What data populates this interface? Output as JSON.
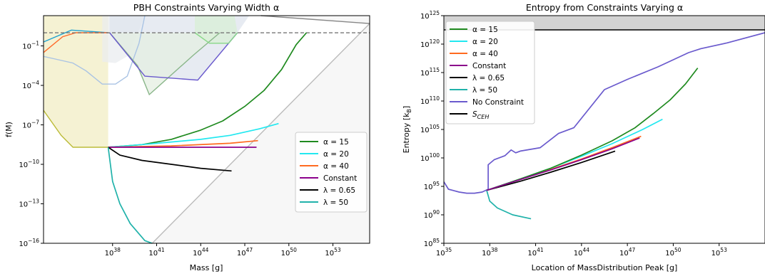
{
  "chart_data": [
    {
      "type": "line",
      "title": "PBH Constraints Varying Width α",
      "xlabel": "Mass [g]",
      "ylabel": "f(M)",
      "xscale": "log",
      "yscale": "log",
      "xlim_log10": [
        33.3,
        55.5
      ],
      "ylim_log10": [
        -16,
        1.3
      ],
      "x_ticks": [
        {
          "v": 38,
          "base": "10",
          "exp": "38"
        },
        {
          "v": 41,
          "base": "10",
          "exp": "41"
        },
        {
          "v": 44,
          "base": "10",
          "exp": "44"
        },
        {
          "v": 47,
          "base": "10",
          "exp": "47"
        },
        {
          "v": 50,
          "base": "10",
          "exp": "50"
        },
        {
          "v": 53,
          "base": "10",
          "exp": "53"
        }
      ],
      "y_ticks": [
        {
          "v": -16,
          "base": "10",
          "exp": "−16"
        },
        {
          "v": -13,
          "base": "10",
          "exp": "−13"
        },
        {
          "v": -10,
          "base": "10",
          "exp": "−10"
        },
        {
          "v": -7,
          "base": "10",
          "exp": "−7"
        },
        {
          "v": -4,
          "base": "10",
          "exp": "−4"
        },
        {
          "v": -1,
          "base": "10",
          "exp": "−1"
        }
      ],
      "legend_position": "center-right",
      "reference_line": {
        "y_log10": 0,
        "style": "dashed",
        "color": "#777777"
      },
      "constraint_regions": [
        {
          "color": "#f2eec4",
          "points": [
            [
              33.3,
              -5.9
            ],
            [
              34.5,
              -7.8
            ],
            [
              35.3,
              -8.7
            ],
            [
              37.7,
              -8.7
            ],
            [
              37.7,
              1.3
            ],
            [
              33.3,
              1.3
            ]
          ]
        },
        {
          "color": "#e9ecef",
          "points": [
            [
              37.3,
              -2.2
            ],
            [
              38.2,
              -2.3
            ],
            [
              39.0,
              -1.8
            ],
            [
              39.8,
              0.2
            ],
            [
              40.2,
              1.3
            ],
            [
              37.3,
              1.3
            ]
          ]
        },
        {
          "color": "#dfe4ee",
          "points": [
            [
              37.8,
              0
            ],
            [
              40.2,
              -3.3
            ],
            [
              43.8,
              -3.6
            ],
            [
              46.5,
              0
            ],
            [
              47.3,
              1.3
            ],
            [
              37.8,
              1.3
            ]
          ]
        },
        {
          "color": "#e4efe2",
          "points": [
            [
              37.8,
              0
            ],
            [
              39.7,
              -2.5
            ],
            [
              40.5,
              -4.7
            ],
            [
              43.5,
              -1.7
            ],
            [
              45.3,
              0
            ],
            [
              37.8,
              0
            ]
          ]
        },
        {
          "color": "#d8efd6",
          "points": [
            [
              43.6,
              0
            ],
            [
              44.6,
              -0.8
            ],
            [
              45.9,
              -0.8
            ],
            [
              46.5,
              0
            ],
            [
              46.3,
              1.3
            ],
            [
              43.6,
              1.3
            ]
          ]
        },
        {
          "color": "#f4f4f4",
          "points": [
            [
              40.7,
              -16
            ],
            [
              55.5,
              0.7
            ],
            [
              55.5,
              -16
            ]
          ]
        },
        {
          "color": "#f4f4f4",
          "points": [
            [
              48.1,
              1.3
            ],
            [
              55.5,
              0.7
            ],
            [
              55.5,
              1.3
            ]
          ]
        }
      ],
      "constraint_lines": [
        {
          "color": "#bcbc3a",
          "points": [
            [
              33.3,
              -5.9
            ],
            [
              34.5,
              -7.8
            ],
            [
              35.3,
              -8.7
            ],
            [
              37.7,
              -8.7
            ]
          ]
        },
        {
          "color": "#a9c3e4",
          "points": [
            [
              33.3,
              -1.8
            ],
            [
              34.1,
              -2.0
            ],
            [
              35.3,
              -2.3
            ],
            [
              36.2,
              -2.9
            ],
            [
              37.3,
              -3.9
            ],
            [
              38.2,
              -3.9
            ],
            [
              39.0,
              -3.3
            ],
            [
              39.8,
              -0.8
            ],
            [
              40.2,
              1.3
            ]
          ]
        },
        {
          "color": "#8ab68a",
          "points": [
            [
              37.8,
              0
            ],
            [
              39.7,
              -2.5
            ],
            [
              40.5,
              -4.7
            ],
            [
              43.5,
              -1.7
            ],
            [
              45.3,
              0
            ]
          ]
        },
        {
          "color": "#6a5acd",
          "points": [
            [
              37.8,
              0
            ],
            [
              40.2,
              -3.3
            ],
            [
              43.8,
              -3.6
            ],
            [
              46.5,
              0
            ]
          ]
        },
        {
          "color": "#88d888",
          "points": [
            [
              43.6,
              0
            ],
            [
              44.6,
              -0.8
            ],
            [
              45.9,
              -0.8
            ],
            [
              46.5,
              0
            ]
          ]
        },
        {
          "color": "#1fa1d0",
          "points": [
            [
              33.3,
              -0.7
            ],
            [
              35.2,
              0.2
            ],
            [
              37.7,
              0
            ]
          ]
        },
        {
          "color": "#ff6a2a",
          "points": [
            [
              33.3,
              -1.5
            ],
            [
              34.6,
              -0.3
            ],
            [
              35.5,
              0
            ],
            [
              37.7,
              0
            ]
          ]
        },
        {
          "color": "#bbbbbb",
          "points": [
            [
              40.7,
              -16
            ],
            [
              55.5,
              0.7
            ]
          ]
        },
        {
          "color": "#888888",
          "points": [
            [
              48.1,
              1.3
            ],
            [
              55.5,
              0.7
            ]
          ]
        }
      ],
      "series": [
        {
          "name": "α = 15",
          "color": "#1f8a1f",
          "x": [
            37.7,
            40,
            42,
            44,
            45.5,
            47,
            48.3,
            49.5,
            50.5,
            51.2
          ],
          "y": [
            -8.7,
            -8.5,
            -8.1,
            -7.4,
            -6.7,
            -5.6,
            -4.4,
            -2.8,
            -0.9,
            0
          ]
        },
        {
          "name": "α = 20",
          "color": "#22e8f0",
          "x": [
            37.7,
            40,
            42,
            44,
            46,
            48,
            49.3
          ],
          "y": [
            -8.7,
            -8.5,
            -8.3,
            -8.1,
            -7.8,
            -7.3,
            -6.9
          ]
        },
        {
          "name": "α = 40",
          "color": "#ff6a1f",
          "x": [
            37.7,
            42,
            46,
            47.9
          ],
          "y": [
            -8.7,
            -8.6,
            -8.4,
            -8.2
          ]
        },
        {
          "name": "Constant",
          "color": "#8b008b",
          "x": [
            37.7,
            42,
            46,
            47.8
          ],
          "y": [
            -8.7,
            -8.7,
            -8.7,
            -8.7
          ]
        },
        {
          "name": "λ = 0.65",
          "color": "#000000",
          "x": [
            37.7,
            38.5,
            40,
            42,
            44,
            46.1
          ],
          "y": [
            -8.7,
            -9.3,
            -9.7,
            -10.0,
            -10.3,
            -10.5
          ]
        },
        {
          "name": "λ = 50",
          "color": "#20b2aa",
          "x": [
            37.7,
            38.0,
            38.5,
            39.2,
            40.2,
            40.7
          ],
          "y": [
            -8.7,
            -11.3,
            -13.0,
            -14.5,
            -15.8,
            -16
          ]
        }
      ]
    },
    {
      "type": "line",
      "title": "Entropy from Constraints Varying α",
      "xlabel": "Location of MassDistribution Peak [g]",
      "ylabel": "Entropy [k",
      "ylabel_sub": "B",
      "ylabel_end": "]",
      "xscale": "log",
      "yscale": "log",
      "xlim_log10": [
        35,
        56
      ],
      "ylim_log10": [
        85,
        125
      ],
      "x_ticks": [
        {
          "v": 35,
          "base": "10",
          "exp": "35"
        },
        {
          "v": 38,
          "base": "10",
          "exp": "38"
        },
        {
          "v": 41,
          "base": "10",
          "exp": "41"
        },
        {
          "v": 44,
          "base": "10",
          "exp": "44"
        },
        {
          "v": 47,
          "base": "10",
          "exp": "47"
        },
        {
          "v": 50,
          "base": "10",
          "exp": "50"
        },
        {
          "v": 53,
          "base": "10",
          "exp": "53"
        }
      ],
      "y_ticks": [
        {
          "v": 85,
          "base": "10",
          "exp": "85"
        },
        {
          "v": 90,
          "base": "10",
          "exp": "90"
        },
        {
          "v": 95,
          "base": "10",
          "exp": "95"
        },
        {
          "v": 100,
          "base": "10",
          "exp": "100"
        },
        {
          "v": 105,
          "base": "10",
          "exp": "105"
        },
        {
          "v": 110,
          "base": "10",
          "exp": "110"
        },
        {
          "v": 115,
          "base": "10",
          "exp": "115"
        },
        {
          "v": 120,
          "base": "10",
          "exp": "120"
        },
        {
          "v": 125,
          "base": "10",
          "exp": "125"
        }
      ],
      "legend_position": "top-left",
      "shaded_band": {
        "y_log10_from": 122.5,
        "y_log10_to": 125,
        "color": "#d3d3d3"
      },
      "series": [
        {
          "name": "α = 15",
          "color": "#1f8a1f",
          "x": [
            37.8,
            40,
            42,
            44,
            46,
            47.5,
            48.7,
            49.8,
            50.8,
            51.6
          ],
          "y": [
            94.3,
            96.3,
            98.2,
            100.5,
            103.0,
            105.3,
            107.8,
            110.2,
            113.0,
            115.8
          ]
        },
        {
          "name": "α = 20",
          "color": "#22e8f0",
          "x": [
            37.8,
            40,
            42,
            44,
            46,
            48,
            49.3
          ],
          "y": [
            94.3,
            96.3,
            98.2,
            100.3,
            102.5,
            105.0,
            106.8
          ]
        },
        {
          "name": "α = 40",
          "color": "#ff6a1f",
          "x": [
            37.8,
            40,
            42,
            44,
            46,
            47.9
          ],
          "y": [
            94.3,
            96.3,
            98.0,
            99.8,
            101.8,
            103.8
          ]
        },
        {
          "name": "Constant",
          "color": "#8b008b",
          "x": [
            37.8,
            40,
            42,
            44,
            46,
            47.8
          ],
          "y": [
            94.3,
            96.2,
            97.9,
            99.7,
            101.6,
            103.5
          ]
        },
        {
          "name": "λ = 0.65",
          "color": "#000000",
          "x": [
            37.8,
            40,
            42,
            44,
            46.2
          ],
          "y": [
            94.3,
            95.9,
            97.5,
            99.2,
            101.2
          ]
        },
        {
          "name": "λ = 50",
          "color": "#20b2aa",
          "x": [
            37.8,
            38,
            38.5,
            39.5,
            40.7
          ],
          "y": [
            94.3,
            92.4,
            91.2,
            90.0,
            89.3
          ]
        },
        {
          "name": "No Constraint",
          "color": "#6a5acd",
          "x": [
            35,
            35.3,
            36,
            36.5,
            37,
            37.5,
            37.9,
            37.9,
            38.3,
            39,
            39.4,
            39.7,
            40,
            41.3,
            42.5,
            43.5,
            45.5,
            47,
            49,
            51,
            51.8,
            53.5,
            56
          ],
          "y": [
            95.8,
            94.5,
            94.0,
            93.8,
            93.8,
            94.0,
            94.5,
            98.8,
            99.7,
            100.4,
            101.4,
            100.9,
            101.2,
            101.8,
            104.3,
            105.3,
            112.0,
            113.8,
            116.0,
            118.5,
            119.2,
            120.2,
            122.0
          ]
        },
        {
          "name": "S_CEH",
          "color": "#000000",
          "x": [
            35,
            56
          ],
          "y": [
            122.5,
            122.5
          ]
        }
      ]
    }
  ],
  "right_legend_labels": {
    "alpha15": "α = 15",
    "alpha20": "α = 20",
    "alpha40": "α = 40",
    "constant": "Constant",
    "lambda065": "λ = 0.65",
    "lambda50": "λ = 50",
    "noconstraint": "No Constraint",
    "sceh": "S",
    "sceh_sub": "CEH"
  }
}
